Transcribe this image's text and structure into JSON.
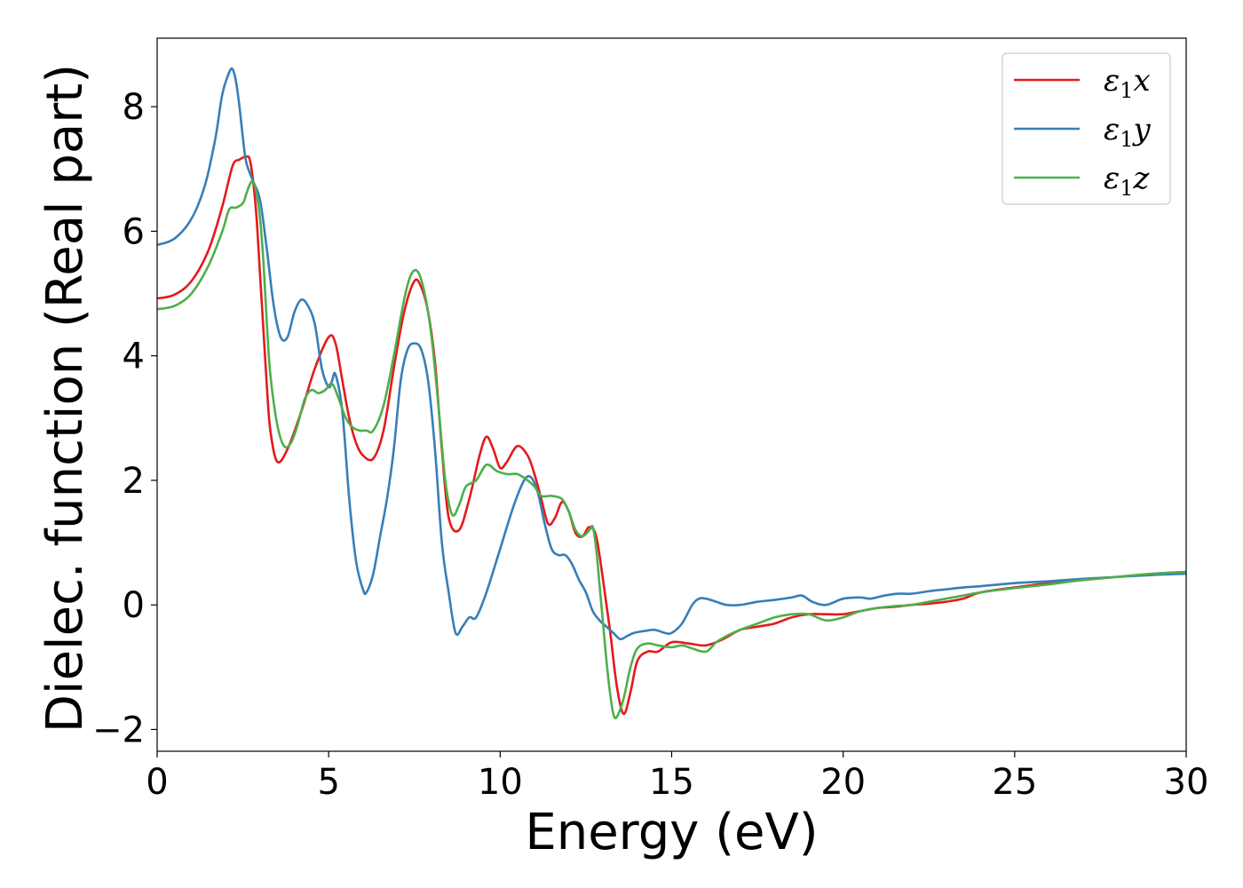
{
  "chart_data": {
    "type": "line",
    "title": "",
    "xlabel": "Energy (eV)",
    "ylabel": "Dielec. function (Real part)",
    "xlim": [
      0,
      30
    ],
    "ylim": [
      -2.35,
      9.1
    ],
    "xticks": [
      0,
      5,
      10,
      15,
      20,
      25,
      30
    ],
    "xtick_labels": [
      "0",
      "5",
      "10",
      "15",
      "20",
      "25",
      "30"
    ],
    "yticks": [
      -2,
      0,
      2,
      4,
      6,
      8
    ],
    "ytick_labels": [
      "−2",
      "0",
      "2",
      "4",
      "6",
      "8"
    ],
    "grid": false,
    "legend": {
      "position": "top-right",
      "entries": [
        {
          "symbol": "ε",
          "subscript": "1",
          "component": "x"
        },
        {
          "symbol": "ε",
          "subscript": "1",
          "component": "y"
        },
        {
          "symbol": "ε",
          "subscript": "1",
          "component": "z"
        }
      ]
    },
    "series": [
      {
        "name": "ε1x",
        "color": "#e41a1c",
        "x": [
          0,
          0.5,
          1.0,
          1.5,
          1.9,
          2.2,
          2.4,
          2.6,
          2.7,
          2.8,
          2.9,
          3.0,
          3.1,
          3.2,
          3.3,
          3.5,
          3.8,
          4.2,
          4.6,
          5.0,
          5.2,
          5.4,
          5.6,
          5.8,
          6.0,
          6.3,
          6.6,
          6.9,
          7.2,
          7.5,
          7.7,
          7.9,
          8.1,
          8.3,
          8.5,
          8.8,
          9.1,
          9.4,
          9.6,
          9.8,
          10.0,
          10.2,
          10.5,
          10.8,
          11.0,
          11.2,
          11.4,
          11.6,
          11.8,
          12.0,
          12.2,
          12.4,
          12.6,
          12.8,
          13.0,
          13.2,
          13.4,
          13.6,
          13.8,
          14.0,
          14.3,
          14.6,
          15.0,
          15.5,
          16.0,
          16.5,
          17.0,
          17.5,
          18.0,
          18.5,
          19.0,
          19.5,
          20.0,
          20.5,
          21.0,
          21.5,
          22.0,
          22.5,
          23.0,
          23.5,
          24.0,
          25.0,
          26.0,
          27.0,
          28.0,
          29.0,
          30.0
        ],
        "y": [
          4.92,
          4.98,
          5.2,
          5.7,
          6.4,
          7.05,
          7.15,
          7.2,
          7.15,
          6.8,
          6.2,
          5.3,
          4.4,
          3.5,
          2.8,
          2.3,
          2.5,
          3.1,
          3.8,
          4.3,
          4.2,
          3.6,
          3.0,
          2.6,
          2.4,
          2.35,
          2.8,
          3.8,
          4.7,
          5.2,
          5.1,
          4.7,
          3.9,
          2.5,
          1.4,
          1.2,
          1.7,
          2.4,
          2.7,
          2.5,
          2.2,
          2.3,
          2.55,
          2.4,
          2.1,
          1.7,
          1.3,
          1.4,
          1.65,
          1.5,
          1.15,
          1.1,
          1.25,
          1.1,
          0.4,
          -0.4,
          -1.3,
          -1.75,
          -1.4,
          -0.9,
          -0.75,
          -0.75,
          -0.6,
          -0.62,
          -0.65,
          -0.55,
          -0.4,
          -0.35,
          -0.3,
          -0.2,
          -0.15,
          -0.15,
          -0.15,
          -0.1,
          -0.05,
          -0.03,
          0.0,
          0.02,
          0.05,
          0.1,
          0.2,
          0.28,
          0.35,
          0.4,
          0.45,
          0.5,
          0.53
        ]
      },
      {
        "name": "ε1y",
        "color": "#377eb8",
        "x": [
          0,
          0.5,
          1.0,
          1.4,
          1.7,
          1.9,
          2.1,
          2.2,
          2.3,
          2.4,
          2.5,
          2.6,
          2.8,
          3.0,
          3.2,
          3.4,
          3.6,
          3.8,
          4.0,
          4.2,
          4.4,
          4.6,
          4.8,
          5.0,
          5.1,
          5.2,
          5.4,
          5.6,
          5.8,
          6.0,
          6.1,
          6.3,
          6.5,
          6.7,
          6.9,
          7.1,
          7.3,
          7.5,
          7.7,
          7.9,
          8.1,
          8.3,
          8.5,
          8.7,
          8.9,
          9.1,
          9.3,
          9.6,
          10.0,
          10.4,
          10.7,
          10.9,
          11.1,
          11.3,
          11.5,
          11.7,
          11.9,
          12.1,
          12.3,
          12.5,
          12.7,
          12.9,
          13.1,
          13.3,
          13.5,
          13.7,
          13.9,
          14.2,
          14.5,
          14.8,
          15.0,
          15.3,
          15.6,
          15.8,
          16.0,
          16.3,
          16.6,
          17.0,
          17.5,
          18.0,
          18.5,
          18.8,
          19.1,
          19.5,
          20.0,
          20.5,
          20.8,
          21.2,
          21.6,
          22.0,
          22.5,
          23.0,
          23.5,
          24.0,
          25.0,
          26.0,
          27.0,
          28.0,
          29.0,
          30.0
        ],
        "y": [
          5.78,
          5.88,
          6.2,
          6.75,
          7.5,
          8.2,
          8.55,
          8.6,
          8.4,
          8.0,
          7.5,
          7.1,
          6.8,
          6.5,
          5.7,
          4.8,
          4.3,
          4.3,
          4.7,
          4.9,
          4.8,
          4.5,
          3.8,
          3.5,
          3.6,
          3.7,
          3.1,
          1.7,
          0.7,
          0.25,
          0.2,
          0.5,
          1.1,
          1.7,
          2.5,
          3.6,
          4.1,
          4.2,
          4.1,
          3.6,
          2.5,
          1.0,
          0.2,
          -0.45,
          -0.35,
          -0.2,
          -0.2,
          0.2,
          0.9,
          1.6,
          2.0,
          2.05,
          1.8,
          1.3,
          0.9,
          0.8,
          0.8,
          0.65,
          0.4,
          0.2,
          -0.1,
          -0.25,
          -0.35,
          -0.45,
          -0.55,
          -0.5,
          -0.45,
          -0.42,
          -0.4,
          -0.45,
          -0.45,
          -0.3,
          0.0,
          0.1,
          0.1,
          0.05,
          0.0,
          0.0,
          0.05,
          0.08,
          0.12,
          0.15,
          0.05,
          0.0,
          0.1,
          0.12,
          0.1,
          0.15,
          0.18,
          0.18,
          0.22,
          0.25,
          0.28,
          0.3,
          0.35,
          0.38,
          0.42,
          0.45,
          0.48,
          0.5
        ]
      },
      {
        "name": "ε1z",
        "color": "#4daf4a",
        "x": [
          0,
          0.5,
          1.0,
          1.5,
          1.9,
          2.1,
          2.3,
          2.5,
          2.6,
          2.7,
          2.8,
          2.9,
          3.0,
          3.1,
          3.2,
          3.3,
          3.5,
          3.7,
          3.9,
          4.1,
          4.3,
          4.5,
          4.7,
          4.9,
          5.1,
          5.3,
          5.5,
          5.7,
          5.9,
          6.1,
          6.3,
          6.6,
          6.9,
          7.2,
          7.4,
          7.6,
          7.8,
          8.0,
          8.2,
          8.4,
          8.6,
          8.8,
          9.0,
          9.3,
          9.6,
          9.9,
          10.2,
          10.5,
          10.8,
          11.0,
          11.2,
          11.5,
          11.8,
          12.0,
          12.2,
          12.4,
          12.6,
          12.7,
          12.8,
          12.9,
          13.0,
          13.1,
          13.2,
          13.3,
          13.4,
          13.6,
          13.8,
          14.0,
          14.3,
          14.6,
          15.0,
          15.3,
          15.6,
          16.0,
          16.3,
          16.6,
          17.0,
          17.5,
          18.0,
          18.5,
          19.0,
          19.5,
          20.0,
          20.5,
          21.0,
          21.5,
          22.0,
          22.5,
          23.0,
          23.5,
          24.0,
          25.0,
          26.0,
          27.0,
          28.0,
          29.0,
          30.0
        ],
        "y": [
          4.75,
          4.8,
          5.0,
          5.45,
          6.0,
          6.35,
          6.38,
          6.45,
          6.6,
          6.75,
          6.8,
          6.6,
          6.2,
          5.5,
          4.5,
          3.7,
          2.9,
          2.55,
          2.6,
          2.9,
          3.3,
          3.45,
          3.4,
          3.45,
          3.55,
          3.3,
          3.0,
          2.85,
          2.8,
          2.8,
          2.8,
          3.2,
          4.0,
          4.9,
          5.3,
          5.35,
          5.0,
          4.3,
          3.2,
          2.0,
          1.45,
          1.6,
          1.9,
          2.0,
          2.25,
          2.15,
          2.1,
          2.1,
          2.0,
          1.9,
          1.75,
          1.75,
          1.7,
          1.5,
          1.2,
          1.1,
          1.2,
          1.25,
          0.9,
          0.3,
          -0.3,
          -0.9,
          -1.4,
          -1.75,
          -1.8,
          -1.5,
          -1.0,
          -0.7,
          -0.62,
          -0.65,
          -0.68,
          -0.65,
          -0.7,
          -0.75,
          -0.6,
          -0.5,
          -0.4,
          -0.3,
          -0.2,
          -0.15,
          -0.15,
          -0.25,
          -0.2,
          -0.1,
          -0.05,
          -0.02,
          0.0,
          0.05,
          0.1,
          0.15,
          0.2,
          0.27,
          0.33,
          0.4,
          0.45,
          0.5,
          0.53
        ]
      }
    ]
  }
}
